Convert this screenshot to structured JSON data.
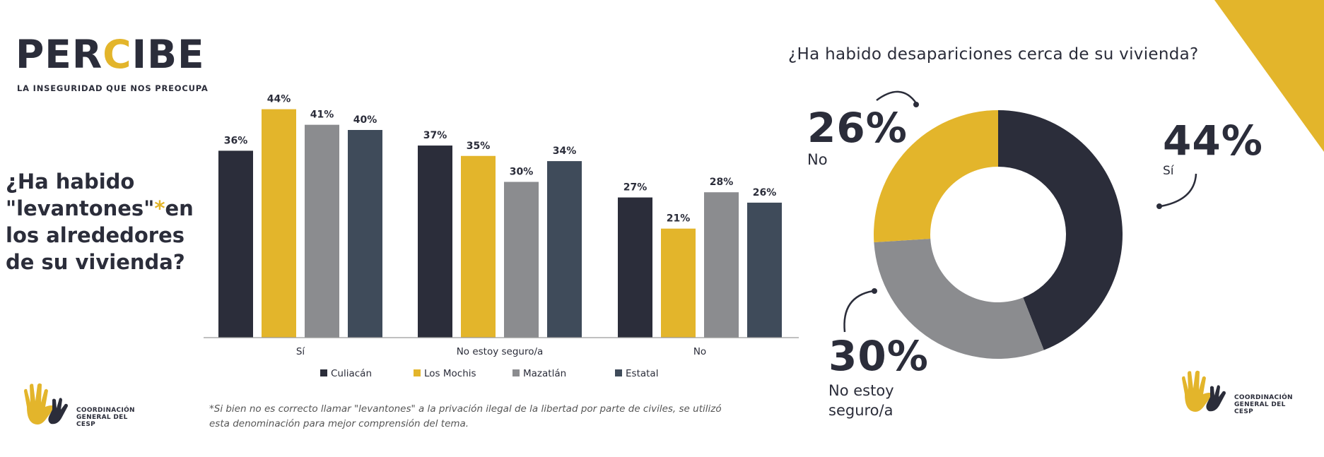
{
  "logo": {
    "word_part1": "PER",
    "word_part2": "C",
    "word_part3": "IBE",
    "tagline": "LA INSEGURIDAD QUE NOS PREOCUPA"
  },
  "left_question": {
    "line1": "¿Ha habido",
    "line2_a": "\"levantones\"",
    "line2_star": "*",
    "line2_b": "en",
    "line3": "los alrededores",
    "line4": "de su vivienda?"
  },
  "right_question": "¿Ha habido desapariciones cerca de su vivienda?",
  "footnote": {
    "line1": "*Si bien no es correcto llamar \"levantones\" a la privación ilegal de la libertad por parte de civiles, se utilizó",
    "line2": "esta denominación para mejor comprensión del tema."
  },
  "cesp": {
    "line1": "COORDINACIÓN",
    "line2": "GENERAL DEL CESP"
  },
  "colors": {
    "dark": "#2b2d3a",
    "yellow": "#e3b52b",
    "gray": "#8b8c8f",
    "slate": "#3f4b5a"
  },
  "chart_data": [
    {
      "type": "bar",
      "title": "¿Ha habido \"levantones\"* en los alrededores de su vivienda?",
      "categories": [
        "Sí",
        "No estoy seguro/a",
        "No"
      ],
      "series": [
        {
          "name": "Culiacán",
          "values": [
            36,
            37,
            27
          ],
          "color": "#2b2d3a"
        },
        {
          "name": "Los Mochis",
          "values": [
            44,
            35,
            21
          ],
          "color": "#e3b52b"
        },
        {
          "name": "Mazatlán",
          "values": [
            41,
            30,
            28
          ],
          "color": "#8b8c8f"
        },
        {
          "name": "Estatal",
          "values": [
            40,
            34,
            26
          ],
          "color": "#3f4b5a"
        }
      ],
      "unit": "%",
      "ylim": [
        0,
        50
      ],
      "grid": false,
      "legend": "bottom"
    },
    {
      "type": "pie",
      "title": "¿Ha habido desapariciones cerca de su vivienda?",
      "labels": [
        "Sí",
        "No estoy seguro/a",
        "No"
      ],
      "values": [
        44,
        30,
        26
      ],
      "colors": [
        "#2b2d3a",
        "#8b8c8f",
        "#e3b52b"
      ],
      "display_labels": [
        "Sí",
        "No estoy seguro/a",
        "No"
      ],
      "donut": true
    }
  ]
}
